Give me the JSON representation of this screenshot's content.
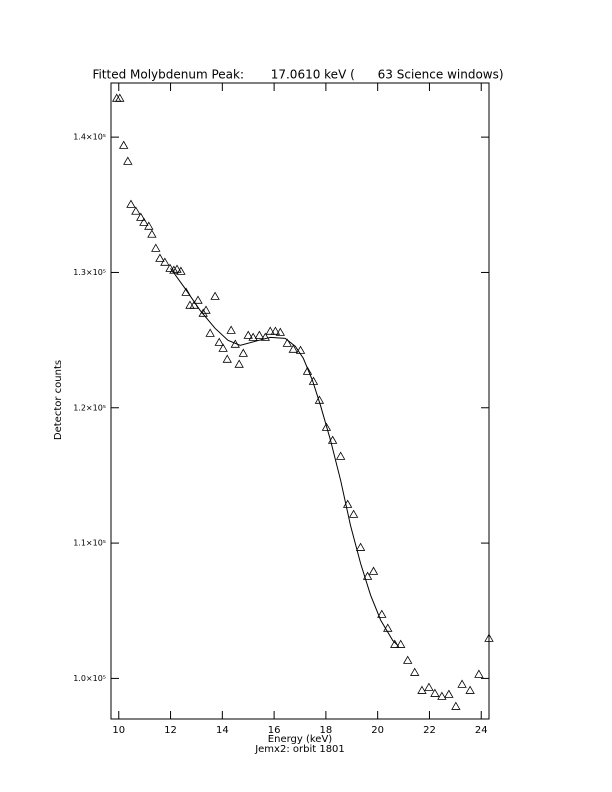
{
  "chart_data": {
    "type": "scatter",
    "title": "Fitted Molybdenum Peak:       17.0610 keV (      63 Science windows)",
    "x_label": "Energy (keV)",
    "subtitle": "Jemx2: orbit 1801",
    "y_label": "Detector counts",
    "xlim": [
      9.7,
      24.3
    ],
    "ylim": [
      97000,
      144000
    ],
    "xticks": [
      10,
      12,
      14,
      16,
      18,
      20,
      22,
      24
    ],
    "yticks": [
      {
        "value": 100000,
        "label": "1.0×10⁵"
      },
      {
        "value": 110000,
        "label": "1.1×10⁵"
      },
      {
        "value": 120000,
        "label": "1.2×10⁵"
      },
      {
        "value": 130000,
        "label": "1.3×10⁵"
      },
      {
        "value": 140000,
        "label": "1.4×10⁵"
      }
    ],
    "color": "#000000",
    "series": [
      {
        "name": "Measured",
        "marker": "triangle",
        "x": [
          9.92,
          10.04,
          10.19,
          10.35,
          10.47,
          10.66,
          10.85,
          10.97,
          11.16,
          11.28,
          11.43,
          11.59,
          11.78,
          11.98,
          12.13,
          12.25,
          12.4,
          12.6,
          12.75,
          12.91,
          13.06,
          13.26,
          13.37,
          13.53,
          13.72,
          13.88,
          14.03,
          14.19,
          14.34,
          14.5,
          14.65,
          14.81,
          15.0,
          15.19,
          15.43,
          15.66,
          15.85,
          16.05,
          16.24,
          16.51,
          16.74,
          17.02,
          17.29,
          17.52,
          17.75,
          18.02,
          18.26,
          18.57,
          18.84,
          19.07,
          19.34,
          19.61,
          19.84,
          20.16,
          20.39,
          20.66,
          20.89,
          21.16,
          21.43,
          21.71,
          21.98,
          22.21,
          22.48,
          22.75,
          23.02,
          23.26,
          23.57,
          23.91,
          24.3
        ],
        "values": [
          142870,
          142870,
          139390,
          138210,
          135030,
          134520,
          134070,
          133700,
          133410,
          132820,
          131780,
          131040,
          130750,
          130300,
          130160,
          130230,
          130080,
          128530,
          127570,
          127570,
          127940,
          126980,
          127200,
          125500,
          128230,
          124830,
          124390,
          123580,
          125720,
          124690,
          123210,
          124020,
          125350,
          125200,
          125350,
          125200,
          125650,
          125650,
          125570,
          124760,
          124320,
          124240,
          122690,
          121950,
          120550,
          118550,
          117590,
          116410,
          112860,
          112120,
          109680,
          107540,
          107910,
          104730,
          103700,
          102510,
          102510,
          101330,
          100440,
          99110,
          99330,
          98890,
          98670,
          98820,
          97930,
          99560,
          99110,
          100300,
          102960
        ]
      },
      {
        "name": "Fit",
        "marker": "line",
        "x": [
          12.0,
          12.56,
          13.14,
          13.72,
          14.22,
          14.69,
          15.27,
          15.85,
          16.43,
          16.82,
          17.13,
          17.48,
          17.79,
          18.18,
          18.57,
          18.95,
          19.34,
          19.73,
          20.12,
          20.58,
          20.81
        ],
        "values": [
          130300,
          128820,
          127200,
          125870,
          124980,
          124610,
          124910,
          125200,
          125130,
          124540,
          123650,
          122030,
          120180,
          117590,
          114630,
          111310,
          108500,
          106130,
          104290,
          102810,
          102370
        ]
      }
    ]
  }
}
